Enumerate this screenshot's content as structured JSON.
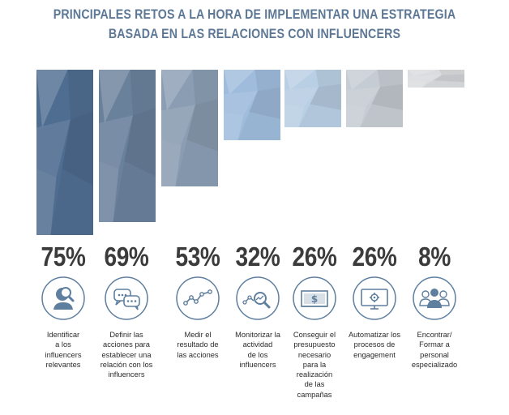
{
  "header": {
    "title_line1": "PRINCIPALES RETOS A LA HORA DE IMPLEMENTAR UNA ESTRATEGIA",
    "title_line2": "BASADA EN LAS RELACIONES CON INFLUENCERS"
  },
  "chart_data": {
    "type": "bar",
    "categories": [
      "Identificar a los influencers relevantes",
      "Definir las acciones para establecer una relación con los influencers",
      "Medir el resultado de las acciones",
      "Monitorizar la actividad de los influencers",
      "Conseguir el presupuesto necesario para la realización de las campañas",
      "Automatizar los procesos de engagement",
      "Encontrar/ Formar a personal especializado"
    ],
    "values": [
      75,
      69,
      53,
      32,
      26,
      26,
      8
    ],
    "value_labels": [
      "75%",
      "69%",
      "53%",
      "32%",
      "26%",
      "26%",
      "8%"
    ],
    "label_lines": [
      "Identificar\na los\ninfluencers\nrelevantes",
      "Definir las\nacciones para\nestablecer una\nrelación con los\ninfluencers",
      "Medir el\nresultado de\nlas acciones",
      "Monitorizar la\nactividad\nde los\ninfluencers",
      "Conseguir el\npresupuesto\nnecesario\npara la\nrealización\nde las\ncampañas",
      "Automatizar los\nprocesos de\nengagement",
      "Encontrar/\nFormar a\npersonal\nespecializado"
    ],
    "colors": [
      "#4f6d90",
      "#6a819c",
      "#8a9db2",
      "#9fbcdc",
      "#b9cfe4",
      "#c6ccd3",
      "#dadcdf"
    ],
    "icons": [
      "person-search-icon",
      "chat-bubbles-icon",
      "line-graph-icon",
      "magnifier-graph-icon",
      "money-bill-icon",
      "monitor-gear-icon",
      "people-group-icon"
    ],
    "icon_color": "#5f7f9f",
    "ylim": [
      0,
      75
    ]
  }
}
